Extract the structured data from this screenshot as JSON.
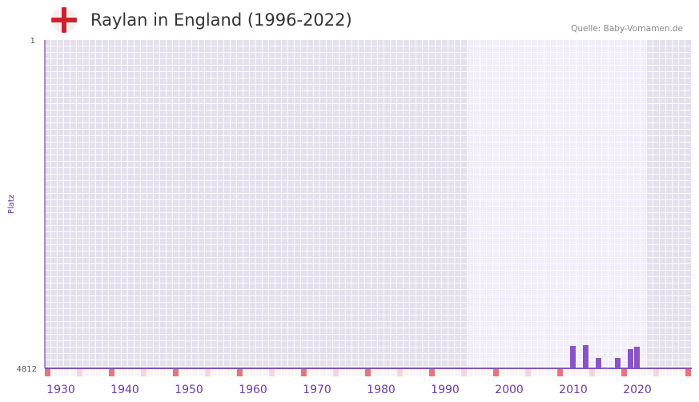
{
  "title": "Raylan in England (1996-2022)",
  "source": "Quelle: Baby-Vornamen.de",
  "chart_data": {
    "type": "bar",
    "title": "Raylan in England (1996-2022)",
    "ylabel": "Platz",
    "ylim": [
      4812,
      1
    ],
    "y_ticks": [
      "1",
      "4812"
    ],
    "xlim": [
      1928,
      2028
    ],
    "x_ticks": [
      1930,
      1940,
      1950,
      1960,
      1970,
      1980,
      1990,
      2000,
      2010,
      2020
    ],
    "highlight_range": [
      1994,
      2021
    ],
    "x": [
      2010,
      2012,
      2014,
      2015,
      2017,
      2019,
      2020
    ],
    "values": [
      4483,
      4472,
      4660,
      4800,
      4660,
      4530,
      4495
    ],
    "colors": {
      "bar": "#8a52c6",
      "axis": "#5b2a9a",
      "bg_dark": "#e3dfec",
      "bg_light": "#f1edfa",
      "marker_red": "#e8737b",
      "marker_pink": "#f6d6dc",
      "tick": "#6a3aa6"
    }
  }
}
